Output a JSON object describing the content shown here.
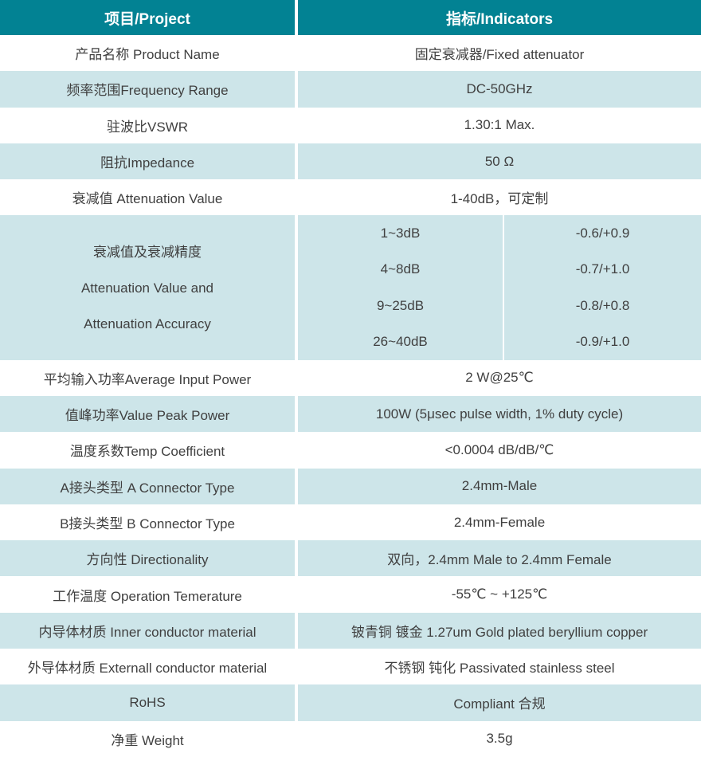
{
  "table": {
    "header": {
      "project": "项目/Project",
      "indicators": "指标/Indicators"
    },
    "rows": [
      {
        "label": "产品名称 Product Name",
        "value": "固定衰减器/Fixed attenuator"
      },
      {
        "label": "频率范围Frequency Range",
        "value": "DC-50GHz"
      },
      {
        "label": "驻波比VSWR",
        "value": "1.30:1 Max."
      },
      {
        "label": "阻抗Impedance",
        "value": "50 Ω"
      },
      {
        "label": "衰减值 Attenuation Value",
        "value": "1-40dB，可定制"
      },
      {
        "label": "平均输入功率Average Input Power",
        "value": "2 W@25℃"
      },
      {
        "label": "值峰功率Value Peak Power",
        "value": "100W (5μsec pulse width, 1% duty cycle)"
      },
      {
        "label": "温度系数Temp Coefficient",
        "value": "<0.0004 dB/dB/℃"
      },
      {
        "label": "A接头类型 A Connector Type",
        "value": "2.4mm-Male"
      },
      {
        "label": "B接头类型 B Connector Type",
        "value": "2.4mm-Female"
      },
      {
        "label": "方向性 Directionality",
        "value": "双向，2.4mm Male to 2.4mm Female"
      },
      {
        "label": "工作温度 Operation Temerature",
        "value": "-55℃ ~ +125℃"
      },
      {
        "label": "内导体材质 Inner conductor material",
        "value": "铍青铜 镀金 1.27um Gold plated beryllium copper"
      },
      {
        "label": "外导体材质 Externall conductor material",
        "value": "不锈钢 钝化 Passivated stainless steel"
      },
      {
        "label": "RoHS",
        "value": "Compliant 合规"
      },
      {
        "label": "净重 Weight",
        "value": "3.5g"
      }
    ],
    "attenuation_accuracy": {
      "label_lines": [
        "衰减值及衰减精度",
        "Attenuation Value and",
        "Attenuation Accuracy"
      ],
      "entries": [
        {
          "range": "1~3dB",
          "accuracy": "-0.6/+0.9"
        },
        {
          "range": "4~8dB",
          "accuracy": "-0.7/+1.0"
        },
        {
          "range": "9~25dB",
          "accuracy": "-0.8/+0.8"
        },
        {
          "range": "26~40dB",
          "accuracy": "-0.9/+1.0"
        }
      ]
    },
    "colors": {
      "header_bg": "#028293",
      "row_alt_bg": "#cde5e9",
      "row_bg": "#ffffff",
      "header_text": "#ffffff",
      "body_text": "#404040"
    }
  }
}
